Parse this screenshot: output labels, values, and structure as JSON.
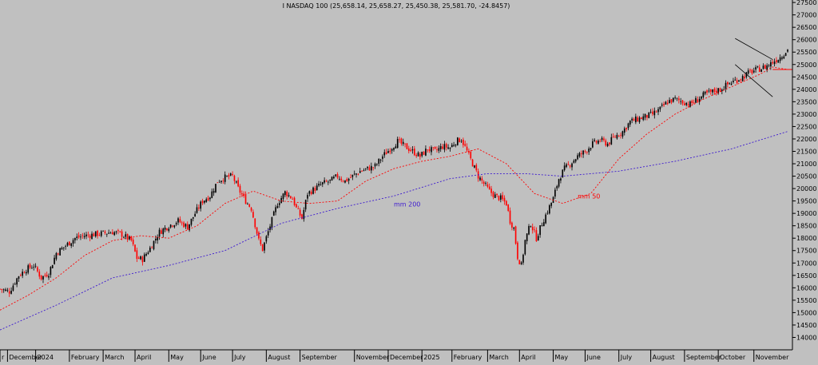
{
  "chart_data": {
    "type": "candlestick",
    "title": "I NASDAQ 100 (25,658.14, 25,658.27, 25,450.38, 25,581.70, -24.8457)",
    "ylim": [
      13500,
      27600
    ],
    "y_ticks": [
      14000,
      14500,
      15000,
      15500,
      16000,
      16500,
      17000,
      17500,
      18000,
      18500,
      19000,
      19500,
      20000,
      20500,
      21000,
      21500,
      22000,
      22500,
      23000,
      23500,
      24000,
      24500,
      25000,
      25500,
      26000,
      26500,
      27000,
      27500
    ],
    "x_months": [
      "r",
      "December",
      "2024",
      "February",
      "March",
      "April",
      "May",
      "June",
      "July",
      "August",
      "September",
      "November",
      "December",
      "2025",
      "February",
      "March",
      "April",
      "May",
      "June",
      "July",
      "August",
      "September",
      "October",
      "November"
    ],
    "x_month_pos": [
      0,
      4,
      19,
      37,
      55,
      72,
      90,
      107,
      124,
      142,
      160,
      189,
      207,
      225,
      241,
      260,
      277,
      295,
      312,
      330,
      347,
      365,
      383,
      402
    ],
    "x_range": [
      0,
      420
    ],
    "bull_color": "#000000",
    "bear_color": "#ff0000",
    "close_path": [
      [
        0,
        15950
      ],
      [
        5,
        15850
      ],
      [
        10,
        16500
      ],
      [
        14,
        16750
      ],
      [
        18,
        16900
      ],
      [
        22,
        16400
      ],
      [
        26,
        16600
      ],
      [
        30,
        17400
      ],
      [
        35,
        17700
      ],
      [
        40,
        18000
      ],
      [
        45,
        18100
      ],
      [
        50,
        18150
      ],
      [
        55,
        18200
      ],
      [
        60,
        18250
      ],
      [
        65,
        18150
      ],
      [
        70,
        17900
      ],
      [
        73,
        17200
      ],
      [
        76,
        17150
      ],
      [
        80,
        17600
      ],
      [
        85,
        18250
      ],
      [
        90,
        18500
      ],
      [
        95,
        18700
      ],
      [
        100,
        18450
      ],
      [
        104,
        19000
      ],
      [
        108,
        19500
      ],
      [
        112,
        19700
      ],
      [
        116,
        20300
      ],
      [
        120,
        20450
      ],
      [
        124,
        20500
      ],
      [
        127,
        20000
      ],
      [
        131,
        19500
      ],
      [
        134,
        19200
      ],
      [
        138,
        17900
      ],
      [
        140,
        17550
      ],
      [
        144,
        18500
      ],
      [
        148,
        19400
      ],
      [
        152,
        19850
      ],
      [
        156,
        19600
      ],
      [
        158,
        19200
      ],
      [
        161,
        18800
      ],
      [
        164,
        19800
      ],
      [
        168,
        20000
      ],
      [
        172,
        20200
      ],
      [
        176,
        20300
      ],
      [
        180,
        20500
      ],
      [
        184,
        20300
      ],
      [
        188,
        20500
      ],
      [
        192,
        20700
      ],
      [
        196,
        20800
      ],
      [
        200,
        20900
      ],
      [
        204,
        21300
      ],
      [
        208,
        21600
      ],
      [
        212,
        21900
      ],
      [
        216,
        21700
      ],
      [
        220,
        21500
      ],
      [
        224,
        21300
      ],
      [
        228,
        21600
      ],
      [
        232,
        21500
      ],
      [
        236,
        21700
      ],
      [
        240,
        21650
      ],
      [
        243,
        21900
      ],
      [
        246,
        22000
      ],
      [
        249,
        21500
      ],
      [
        252,
        21000
      ],
      [
        255,
        20500
      ],
      [
        258,
        20200
      ],
      [
        261,
        19900
      ],
      [
        264,
        19700
      ],
      [
        267,
        19600
      ],
      [
        270,
        19400
      ],
      [
        272,
        18700
      ],
      [
        274,
        18400
      ],
      [
        276,
        17250
      ],
      [
        278,
        16900
      ],
      [
        280,
        17900
      ],
      [
        283,
        18600
      ],
      [
        286,
        18000
      ],
      [
        289,
        18600
      ],
      [
        292,
        19100
      ],
      [
        295,
        19600
      ],
      [
        298,
        20400
      ],
      [
        301,
        20800
      ],
      [
        304,
        21000
      ],
      [
        308,
        21300
      ],
      [
        312,
        21500
      ],
      [
        316,
        21800
      ],
      [
        320,
        21950
      ],
      [
        324,
        21800
      ],
      [
        328,
        22100
      ],
      [
        332,
        22300
      ],
      [
        336,
        22700
      ],
      [
        340,
        22800
      ],
      [
        344,
        22900
      ],
      [
        348,
        23000
      ],
      [
        352,
        23200
      ],
      [
        356,
        23500
      ],
      [
        360,
        23600
      ],
      [
        364,
        23500
      ],
      [
        368,
        23400
      ],
      [
        372,
        23600
      ],
      [
        376,
        23800
      ],
      [
        380,
        23900
      ],
      [
        384,
        24000
      ],
      [
        388,
        24200
      ],
      [
        392,
        24350
      ],
      [
        396,
        24500
      ],
      [
        400,
        24700
      ],
      [
        404,
        24800
      ],
      [
        408,
        24900
      ],
      [
        412,
        25100
      ],
      [
        416,
        25300
      ],
      [
        420,
        25600
      ]
    ],
    "series": [
      {
        "name": "mm 50",
        "color": "#ff0000",
        "points": [
          [
            0,
            15100
          ],
          [
            15,
            15700
          ],
          [
            30,
            16400
          ],
          [
            45,
            17300
          ],
          [
            60,
            17900
          ],
          [
            75,
            18100
          ],
          [
            90,
            18000
          ],
          [
            105,
            18500
          ],
          [
            120,
            19400
          ],
          [
            135,
            19900
          ],
          [
            150,
            19500
          ],
          [
            165,
            19400
          ],
          [
            180,
            19500
          ],
          [
            195,
            20300
          ],
          [
            210,
            20800
          ],
          [
            225,
            21100
          ],
          [
            240,
            21300
          ],
          [
            255,
            21600
          ],
          [
            270,
            21000
          ],
          [
            285,
            19800
          ],
          [
            300,
            19400
          ],
          [
            315,
            19800
          ],
          [
            330,
            21200
          ],
          [
            345,
            22200
          ],
          [
            360,
            23000
          ],
          [
            375,
            23600
          ],
          [
            390,
            24100
          ],
          [
            405,
            24600
          ],
          [
            412,
            24900
          ],
          [
            420,
            24800
          ]
        ]
      },
      {
        "name": "mm 200",
        "color": "#3d1ad0",
        "points": [
          [
            0,
            14300
          ],
          [
            30,
            15300
          ],
          [
            60,
            16400
          ],
          [
            90,
            16900
          ],
          [
            120,
            17500
          ],
          [
            150,
            18600
          ],
          [
            180,
            19200
          ],
          [
            210,
            19700
          ],
          [
            240,
            20400
          ],
          [
            260,
            20600
          ],
          [
            280,
            20600
          ],
          [
            300,
            20500
          ],
          [
            330,
            20700
          ],
          [
            360,
            21100
          ],
          [
            390,
            21600
          ],
          [
            420,
            22300
          ]
        ]
      }
    ],
    "annotations": [
      {
        "text": "mm 200",
        "x": 210,
        "y": 19280
      },
      {
        "text": "mm 50",
        "x": 308,
        "y": 19600
      }
    ]
  }
}
